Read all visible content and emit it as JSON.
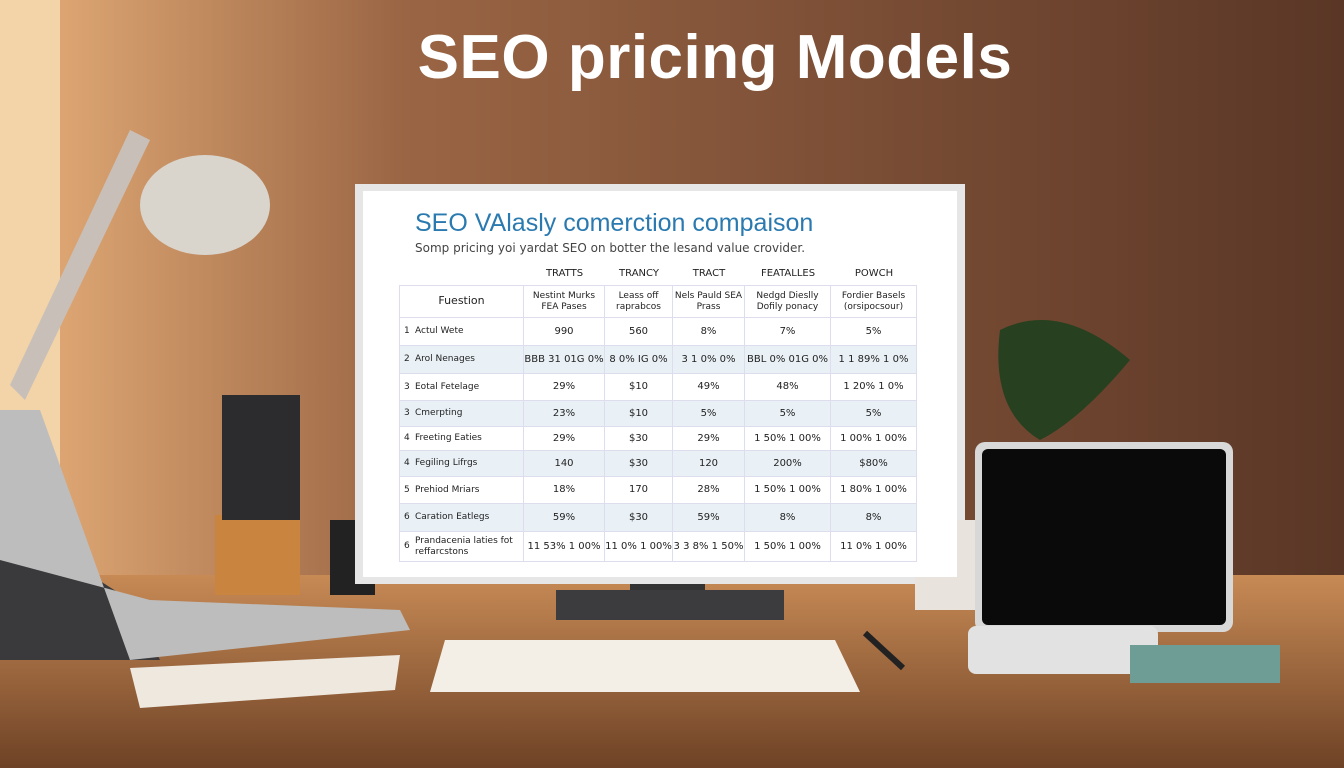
{
  "title": "SEO pricing Models",
  "screen": {
    "heading": "SEO VAlasly comerction compaison",
    "subtitle": "Somp pricing yoi yardat SEO on botter the lesand value crovider."
  },
  "table": {
    "group_headers": [
      "TRATTS",
      "TRANCY",
      "TRACT",
      "FEATALLES",
      "POWCH"
    ],
    "columns": [
      "Fuestion",
      "Nestint Murks FEA Pases",
      "Leass off raprabcos",
      "Nels Pauld SEA Prass",
      "Nedgd Dieslly Dofily ponacy",
      "Fordier Basels (orsipocsour)"
    ],
    "rows": [
      [
        "1",
        "Actul Wete",
        "990",
        "560",
        "8%",
        "7%",
        "5%"
      ],
      [
        "2",
        "Arol Nenages",
        "BBB 31 01G 0%",
        "8 0% IG 0%",
        "3 1 0% 0%",
        "BBL 0% 01G 0%",
        "1 1 89% 1 0%"
      ],
      [
        "3",
        "Eotal Fetelage",
        "29%",
        "$10",
        "49%",
        "48%",
        "1 20% 1 0%"
      ],
      [
        "3",
        "Cmerpting",
        "23%",
        "$10",
        "5%",
        "5%",
        "5%"
      ],
      [
        "4",
        "Freeting Eaties",
        "29%",
        "$30",
        "29%",
        "1 50% 1 00%",
        "1 00% 1 00%"
      ],
      [
        "4",
        "Fegiling Lifrgs",
        "140",
        "$30",
        "120",
        "200%",
        "$80%"
      ],
      [
        "5",
        "Prehiod Mriars",
        "18%",
        "170",
        "28%",
        "1 50% 1 00%",
        "1 80% 1 00%"
      ],
      [
        "6",
        "Caration Eatlegs",
        "59%",
        "$30",
        "59%",
        "8%",
        "8%"
      ],
      [
        "6",
        "Prandacenia laties fot reffarcstons",
        "11 53% 1 00%",
        "11 0% 1 00%",
        "3 3 8% 1 50%",
        "1 50% 1 00%",
        "11 0% 1 00%"
      ]
    ]
  }
}
